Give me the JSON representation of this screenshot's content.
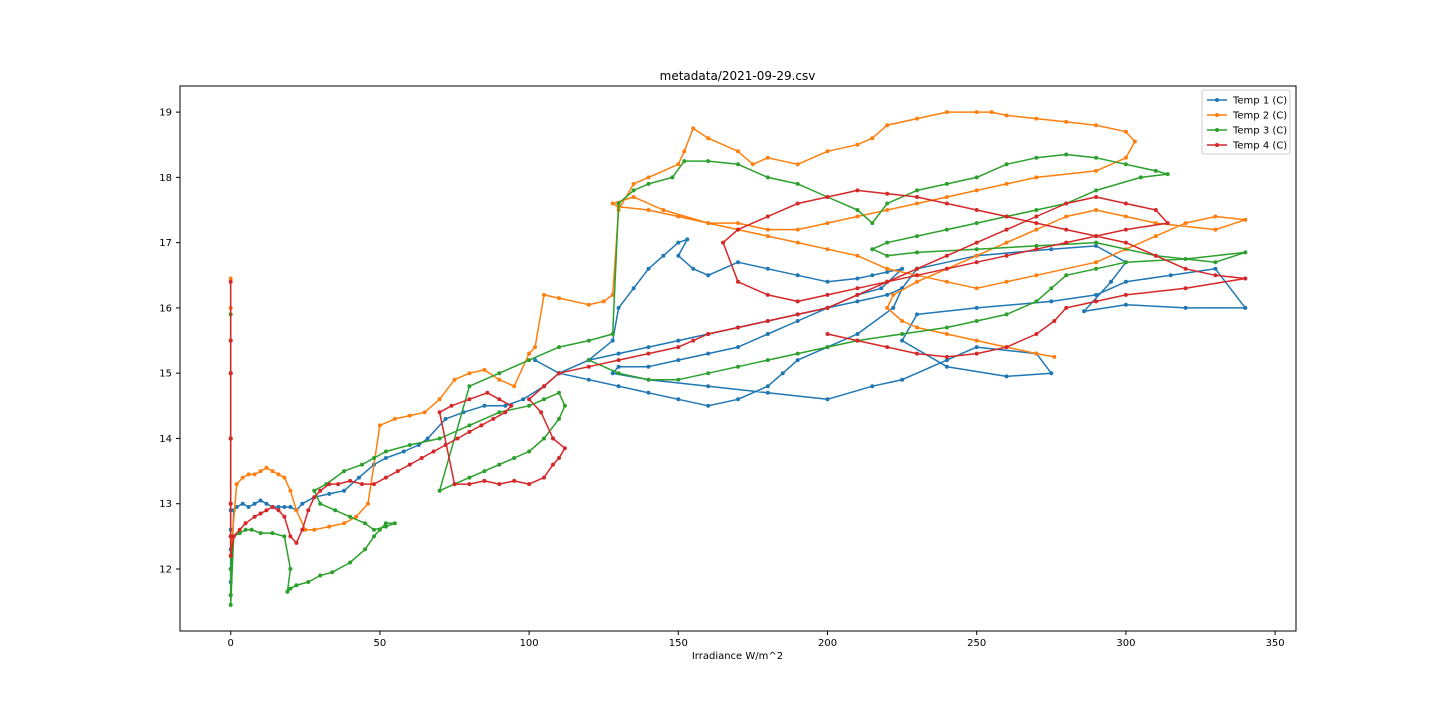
{
  "chart_data": {
    "type": "line",
    "title": "metadata/2021-09-29.csv",
    "xlabel": "Irradiance W/m^2",
    "ylabel": "",
    "xlim": [
      -17,
      357
    ],
    "ylim": [
      11.05,
      19.4
    ],
    "xticks": [
      0,
      50,
      100,
      150,
      200,
      250,
      300,
      350
    ],
    "yticks": [
      12,
      13,
      14,
      15,
      16,
      17,
      18,
      19
    ],
    "grid": false,
    "legend_position": "top-right",
    "series": [
      {
        "name": "Temp 1 (C)",
        "color": "#1f77b4",
        "x": [
          0,
          0,
          0,
          0,
          0,
          0,
          1,
          2,
          4,
          6,
          8,
          10,
          12,
          14,
          16,
          18,
          20,
          22,
          24,
          28,
          33,
          38,
          43,
          48,
          52,
          58,
          63,
          66,
          72,
          78,
          85,
          92,
          98,
          105,
          110,
          120,
          128,
          130,
          135,
          140,
          145,
          150,
          153,
          150,
          155,
          160,
          170,
          180,
          190,
          200,
          210,
          215,
          220,
          225,
          218,
          210,
          200,
          190,
          180,
          170,
          160,
          150,
          140,
          130,
          128,
          140,
          160,
          180,
          200,
          215,
          225,
          240,
          250,
          270,
          275,
          260,
          240,
          225,
          230,
          250,
          275,
          290,
          300,
          315,
          330,
          340,
          320,
          300,
          286,
          295,
          300,
          290,
          275,
          250,
          230,
          225,
          222,
          210,
          200,
          190,
          185,
          180,
          170,
          160,
          150,
          140,
          130,
          120,
          110,
          102,
          110,
          120,
          130,
          140,
          150,
          160,
          170,
          180,
          190,
          200,
          210,
          220,
          225
        ],
        "y": [
          12.9,
          12.6,
          12.3,
          12.0,
          11.8,
          11.6,
          12.9,
          12.95,
          13.0,
          12.95,
          13.0,
          13.05,
          13.0,
          12.95,
          12.95,
          12.95,
          12.95,
          12.9,
          13.0,
          13.1,
          13.15,
          13.2,
          13.4,
          13.6,
          13.7,
          13.8,
          13.9,
          14.0,
          14.3,
          14.4,
          14.5,
          14.5,
          14.6,
          14.8,
          15.0,
          15.2,
          15.5,
          16.0,
          16.3,
          16.6,
          16.8,
          17.0,
          17.05,
          16.8,
          16.6,
          16.5,
          16.7,
          16.6,
          16.5,
          16.4,
          16.45,
          16.5,
          16.55,
          16.6,
          16.3,
          16.2,
          16.0,
          15.8,
          15.6,
          15.4,
          15.3,
          15.2,
          15.1,
          15.1,
          15.0,
          14.9,
          14.8,
          14.7,
          14.6,
          14.8,
          14.9,
          15.2,
          15.4,
          15.3,
          15.0,
          14.95,
          15.1,
          15.5,
          15.9,
          16.0,
          16.1,
          16.2,
          16.4,
          16.5,
          16.6,
          16.0,
          16.0,
          16.05,
          15.95,
          16.4,
          16.7,
          16.95,
          16.9,
          16.8,
          16.6,
          16.3,
          16.0,
          15.6,
          15.4,
          15.2,
          15.0,
          14.8,
          14.6,
          14.5,
          14.6,
          14.7,
          14.8,
          14.9,
          15.0,
          15.2,
          15.0,
          15.2,
          15.3,
          15.4,
          15.5,
          15.6,
          15.7,
          15.8,
          15.9,
          16.0,
          16.1,
          16.2,
          16.3
        ]
      },
      {
        "name": "Temp 2 (C)",
        "color": "#ff7f0e",
        "x": [
          0,
          0,
          0,
          0,
          0,
          0,
          0,
          0,
          2,
          4,
          6,
          8,
          10,
          12,
          14,
          16,
          18,
          20,
          22,
          25,
          28,
          33,
          38,
          42,
          46,
          50,
          55,
          60,
          65,
          70,
          75,
          80,
          85,
          90,
          95,
          100,
          102,
          105,
          110,
          120,
          125,
          128,
          130,
          135,
          140,
          150,
          152,
          155,
          160,
          170,
          175,
          180,
          190,
          200,
          210,
          215,
          220,
          230,
          240,
          250,
          255,
          260,
          270,
          280,
          290,
          300,
          303,
          300,
          290,
          270,
          260,
          250,
          240,
          230,
          220,
          210,
          200,
          190,
          180,
          170,
          160,
          150,
          140,
          130,
          128,
          135,
          145,
          160,
          170,
          180,
          190,
          200,
          210,
          220,
          230,
          240,
          250,
          260,
          270,
          290,
          300,
          310,
          320,
          330,
          340,
          330,
          310,
          300,
          290,
          280,
          270,
          260,
          250,
          240,
          230,
          222,
          220,
          225,
          230,
          240,
          250,
          260,
          270,
          276
        ],
        "y": [
          16.45,
          16.0,
          15.5,
          15.0,
          14.0,
          13.0,
          12.5,
          12.2,
          13.3,
          13.4,
          13.45,
          13.45,
          13.5,
          13.55,
          13.5,
          13.45,
          13.4,
          13.2,
          12.9,
          12.6,
          12.6,
          12.65,
          12.7,
          12.8,
          13.0,
          14.2,
          14.3,
          14.35,
          14.4,
          14.6,
          14.9,
          15.0,
          15.05,
          14.9,
          14.8,
          15.3,
          15.4,
          16.2,
          16.15,
          16.05,
          16.1,
          16.2,
          17.5,
          17.9,
          18.0,
          18.2,
          18.4,
          18.75,
          18.6,
          18.4,
          18.2,
          18.3,
          18.2,
          18.4,
          18.5,
          18.6,
          18.8,
          18.9,
          19.0,
          19.0,
          19.0,
          18.95,
          18.9,
          18.85,
          18.8,
          18.7,
          18.55,
          18.3,
          18.1,
          18.0,
          17.9,
          17.8,
          17.7,
          17.6,
          17.5,
          17.4,
          17.3,
          17.2,
          17.2,
          17.3,
          17.3,
          17.4,
          17.5,
          17.55,
          17.6,
          17.7,
          17.5,
          17.3,
          17.2,
          17.1,
          17.0,
          16.9,
          16.8,
          16.6,
          16.5,
          16.4,
          16.3,
          16.4,
          16.5,
          16.7,
          16.9,
          17.1,
          17.3,
          17.4,
          17.35,
          17.2,
          17.3,
          17.4,
          17.5,
          17.4,
          17.2,
          17.0,
          16.8,
          16.6,
          16.4,
          16.2,
          16.0,
          15.8,
          15.7,
          15.6,
          15.5,
          15.4,
          15.3,
          15.25
        ]
      },
      {
        "name": "Temp 3 (C)",
        "color": "#2ca02c",
        "x": [
          0,
          0,
          0,
          0,
          0,
          0,
          0,
          1,
          3,
          5,
          7,
          10,
          14,
          18,
          20,
          19,
          20,
          22,
          26,
          30,
          34,
          40,
          45,
          48,
          50,
          52,
          55,
          52,
          48,
          45,
          40,
          35,
          30,
          28,
          32,
          38,
          44,
          48,
          52,
          60,
          70,
          80,
          90,
          100,
          105,
          110,
          112,
          110,
          105,
          100,
          95,
          90,
          85,
          80,
          75,
          70,
          80,
          90,
          100,
          110,
          120,
          128,
          130,
          135,
          140,
          148,
          152,
          160,
          170,
          180,
          190,
          200,
          210,
          215,
          220,
          230,
          240,
          250,
          260,
          270,
          280,
          290,
          300,
          310,
          314,
          305,
          290,
          280,
          270,
          260,
          250,
          240,
          230,
          220,
          215,
          220,
          230,
          250,
          270,
          290,
          310,
          330,
          340,
          320,
          300,
          290,
          280,
          275,
          270,
          260,
          250,
          240,
          225,
          210,
          200,
          190,
          180,
          170,
          160,
          150,
          140,
          130,
          120
        ],
        "y": [
          15.9,
          15.0,
          14.0,
          13.0,
          12.0,
          11.6,
          11.45,
          12.5,
          12.55,
          12.6,
          12.6,
          12.55,
          12.55,
          12.5,
          12.0,
          11.65,
          11.7,
          11.75,
          11.8,
          11.9,
          11.95,
          12.1,
          12.3,
          12.5,
          12.6,
          12.7,
          12.7,
          12.65,
          12.6,
          12.7,
          12.8,
          12.9,
          13.0,
          13.2,
          13.3,
          13.5,
          13.6,
          13.7,
          13.8,
          13.9,
          14.0,
          14.2,
          14.4,
          14.5,
          14.6,
          14.7,
          14.5,
          14.3,
          14.0,
          13.8,
          13.7,
          13.6,
          13.5,
          13.4,
          13.3,
          13.2,
          14.8,
          15.0,
          15.2,
          15.4,
          15.5,
          15.6,
          17.6,
          17.8,
          17.9,
          18.0,
          18.25,
          18.25,
          18.2,
          18.0,
          17.9,
          17.7,
          17.5,
          17.3,
          17.6,
          17.8,
          17.9,
          18.0,
          18.2,
          18.3,
          18.35,
          18.3,
          18.2,
          18.1,
          18.05,
          18.0,
          17.8,
          17.6,
          17.5,
          17.4,
          17.3,
          17.2,
          17.1,
          17.0,
          16.9,
          16.8,
          16.85,
          16.9,
          16.95,
          17.0,
          16.8,
          16.7,
          16.85,
          16.75,
          16.7,
          16.6,
          16.5,
          16.3,
          16.1,
          15.9,
          15.8,
          15.7,
          15.6,
          15.5,
          15.4,
          15.3,
          15.2,
          15.1,
          15.0,
          14.9,
          14.9,
          15.0,
          15.2
        ]
      },
      {
        "name": "Temp 4 (C)",
        "color": "#d62728",
        "x": [
          0,
          0,
          0,
          0,
          0,
          0,
          0,
          1,
          3,
          5,
          8,
          10,
          12,
          14,
          16,
          18,
          20,
          22,
          24,
          26,
          28,
          30,
          33,
          36,
          40,
          44,
          48,
          52,
          56,
          60,
          64,
          68,
          72,
          76,
          80,
          84,
          88,
          92,
          94,
          90,
          86,
          80,
          74,
          70,
          75,
          80,
          85,
          90,
          95,
          100,
          105,
          108,
          110,
          112,
          108,
          104,
          100,
          105,
          110,
          120,
          130,
          140,
          150,
          155,
          160,
          170,
          180,
          190,
          200,
          210,
          220,
          230,
          240,
          250,
          260,
          270,
          280,
          290,
          300,
          310,
          314,
          300,
          290,
          280,
          270,
          260,
          250,
          240,
          230,
          220,
          210,
          200,
          190,
          180,
          170,
          165,
          170,
          180,
          190,
          200,
          210,
          220,
          230,
          240,
          250,
          260,
          270,
          280,
          290,
          300,
          310,
          320,
          330,
          340,
          320,
          300,
          290,
          280,
          276,
          270,
          260,
          250,
          240,
          230,
          220,
          210,
          200
        ],
        "y": [
          16.4,
          15.5,
          15.0,
          14.0,
          13.0,
          12.5,
          12.2,
          12.5,
          12.6,
          12.7,
          12.8,
          12.85,
          12.9,
          12.95,
          12.9,
          12.8,
          12.5,
          12.4,
          12.6,
          12.9,
          13.1,
          13.2,
          13.3,
          13.3,
          13.35,
          13.3,
          13.3,
          13.4,
          13.5,
          13.6,
          13.7,
          13.8,
          13.9,
          14.0,
          14.1,
          14.2,
          14.3,
          14.4,
          14.5,
          14.6,
          14.7,
          14.6,
          14.5,
          14.4,
          13.3,
          13.3,
          13.35,
          13.3,
          13.35,
          13.3,
          13.4,
          13.6,
          13.7,
          13.85,
          14.0,
          14.4,
          14.6,
          14.8,
          15.0,
          15.1,
          15.2,
          15.3,
          15.4,
          15.5,
          15.6,
          15.7,
          15.8,
          15.9,
          16.0,
          16.2,
          16.4,
          16.6,
          16.8,
          17.0,
          17.2,
          17.4,
          17.6,
          17.7,
          17.6,
          17.5,
          17.3,
          17.2,
          17.1,
          17.0,
          16.9,
          16.8,
          16.7,
          16.6,
          16.5,
          16.4,
          16.3,
          16.2,
          16.1,
          16.2,
          16.4,
          17.0,
          17.2,
          17.4,
          17.6,
          17.7,
          17.8,
          17.75,
          17.7,
          17.6,
          17.5,
          17.4,
          17.3,
          17.2,
          17.1,
          17.0,
          16.8,
          16.6,
          16.5,
          16.45,
          16.3,
          16.2,
          16.1,
          16.0,
          15.8,
          15.6,
          15.4,
          15.3,
          15.25,
          15.3,
          15.4,
          15.5,
          15.6
        ]
      }
    ]
  }
}
